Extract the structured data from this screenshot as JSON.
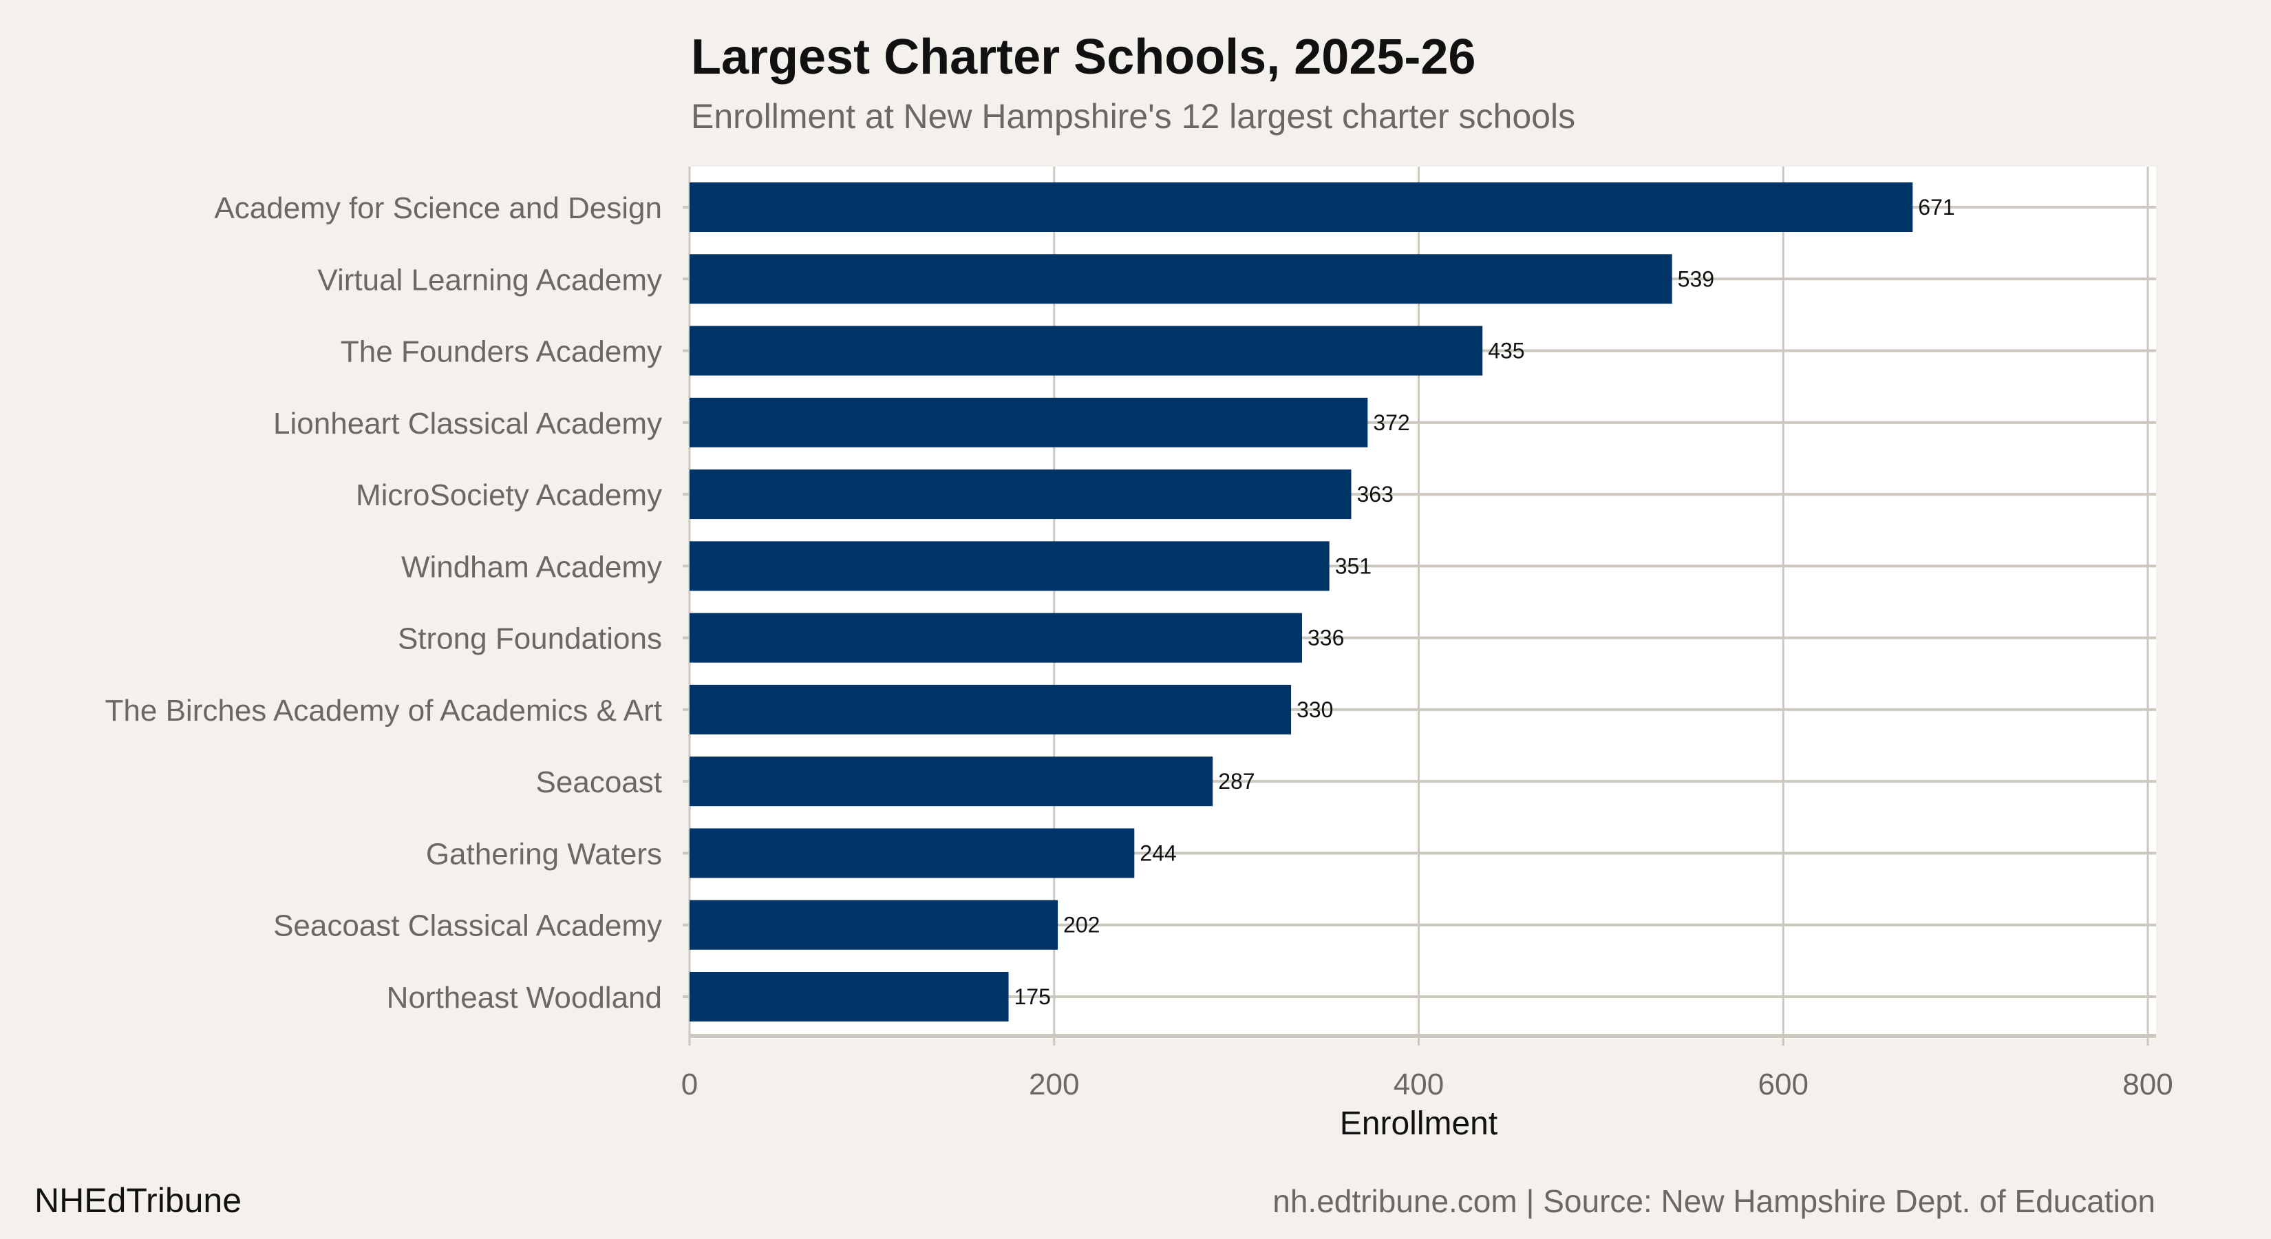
{
  "title": "Largest Charter Schools, 2025-26",
  "subtitle": "Enrollment at New Hampshire's 12 largest charter schools",
  "brand": "NHEdTribune",
  "caption": "nh.edtribune.com | Source: New Hampshire Dept. of Education",
  "colors": {
    "bar": "#003366",
    "background": "#f4f1ec",
    "panel": "#ffffff",
    "grid": "#ccc8bf"
  },
  "chart_data": {
    "type": "bar",
    "orientation": "horizontal",
    "categories": [
      "Academy for Science and Design",
      "Virtual Learning Academy",
      "The Founders Academy",
      "Lionheart Classical Academy",
      "MicroSociety Academy",
      "Windham Academy",
      "Strong Foundations",
      "The Birches Academy of Academics & Art",
      "Seacoast",
      "Gathering Waters",
      "Seacoast Classical Academy",
      "Northeast Woodland"
    ],
    "values": [
      671,
      539,
      435,
      372,
      363,
      351,
      336,
      330,
      287,
      244,
      202,
      175
    ],
    "xlabel": "Enrollment",
    "ylabel": "",
    "xlim": [
      0,
      800
    ],
    "xticks": [
      0,
      200,
      400,
      600,
      800
    ],
    "grid": true
  }
}
